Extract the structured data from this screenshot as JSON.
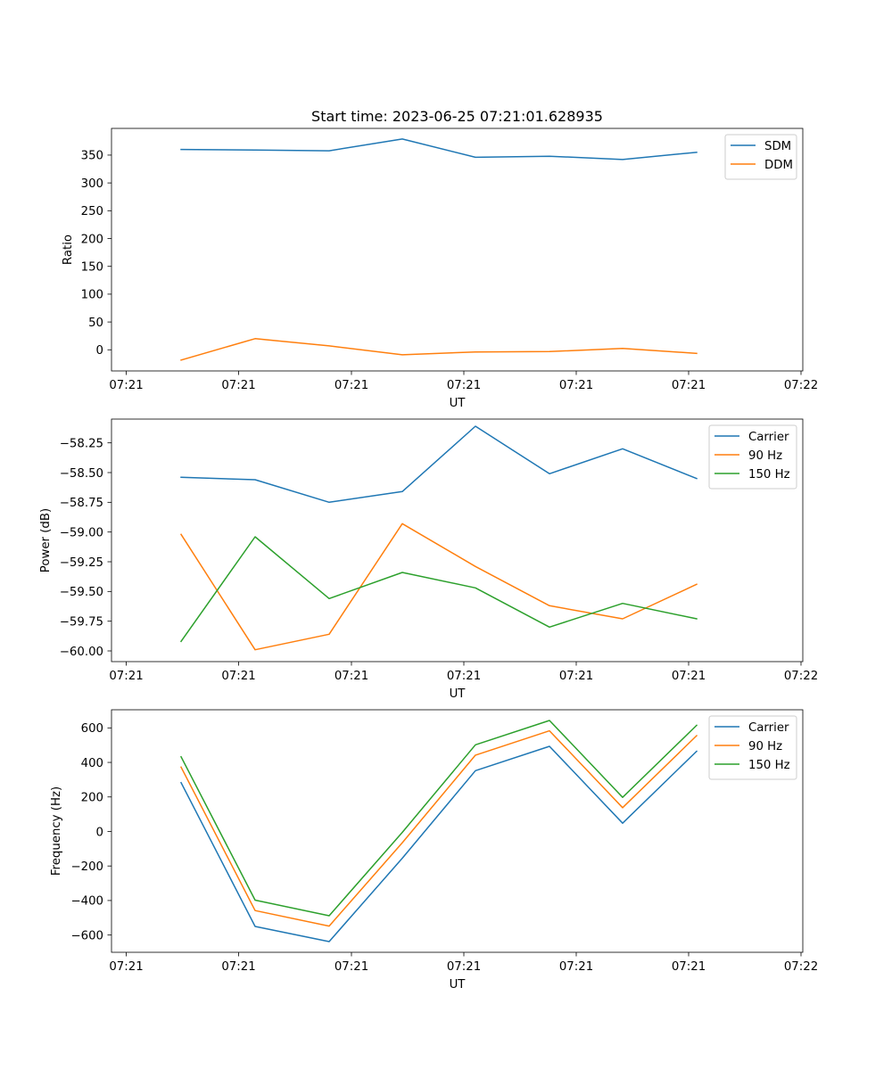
{
  "figure": {
    "title": "Start time: 2023-06-25 07:21:01.628935"
  },
  "chart_data": [
    {
      "type": "line",
      "title": "Start time: 2023-06-25 07:21:01.628935",
      "xlabel": "UT",
      "ylabel": "Ratio",
      "x_tick_labels": [
        "07:21",
        "07:21",
        "07:21",
        "07:21",
        "07:21",
        "07:21",
        "07:22"
      ],
      "y_ticks": [
        0,
        50,
        100,
        150,
        200,
        250,
        300,
        350
      ],
      "y_tick_labels": [
        "0",
        "50",
        "100",
        "150",
        "200",
        "250",
        "300",
        "350"
      ],
      "ylim": [
        -38,
        398
      ],
      "legend_position": "upper right",
      "series": [
        {
          "name": "SDM",
          "color": "#1f77b4",
          "values": [
            360.2,
            359.0,
            357.8,
            379.0,
            346.0,
            348.0,
            342.0,
            355.0
          ]
        },
        {
          "name": "DDM",
          "color": "#ff7f0e",
          "values": [
            -18.5,
            20.0,
            7.0,
            -9.0,
            -3.8,
            -3.2,
            2.6,
            -6.4
          ]
        }
      ]
    },
    {
      "type": "line",
      "title": "",
      "xlabel": "UT",
      "ylabel": "Power (dB)",
      "x_tick_labels": [
        "07:21",
        "07:21",
        "07:21",
        "07:21",
        "07:21",
        "07:21",
        "07:22"
      ],
      "y_ticks": [
        -60.0,
        -59.75,
        -59.5,
        -59.25,
        -59.0,
        -58.75,
        -58.5,
        -58.25
      ],
      "y_tick_labels": [
        "−60.00",
        "−59.75",
        "−59.50",
        "−59.25",
        "−59.00",
        "−58.75",
        "−58.50",
        "−58.25"
      ],
      "ylim": [
        -60.09,
        -58.05
      ],
      "legend_position": "upper right",
      "series": [
        {
          "name": "Carrier",
          "color": "#1f77b4",
          "values": [
            -58.54,
            -58.56,
            -58.75,
            -58.66,
            -58.11,
            -58.51,
            -58.3,
            -58.55
          ]
        },
        {
          "name": "90 Hz",
          "color": "#ff7f0e",
          "values": [
            -59.02,
            -59.99,
            -59.86,
            -58.93,
            -59.29,
            -59.62,
            -59.73,
            -59.44
          ]
        },
        {
          "name": "150 Hz",
          "color": "#2ca02c",
          "values": [
            -59.92,
            -59.04,
            -59.56,
            -59.34,
            -59.47,
            -59.8,
            -59.6,
            -59.73
          ]
        }
      ]
    },
    {
      "type": "line",
      "title": "",
      "xlabel": "UT",
      "ylabel": "Frequency (Hz)",
      "x_tick_labels": [
        "07:21",
        "07:21",
        "07:21",
        "07:21",
        "07:21",
        "07:21",
        "07:22"
      ],
      "y_ticks": [
        -600,
        -400,
        -200,
        0,
        200,
        400,
        600
      ],
      "y_tick_labels": [
        "−600",
        "−400",
        "−200",
        "0",
        "200",
        "400",
        "600"
      ],
      "ylim": [
        -700,
        705
      ],
      "legend_position": "upper right",
      "series": [
        {
          "name": "Carrier",
          "color": "#1f77b4",
          "values": [
            283,
            -550,
            -638,
            -155,
            352,
            493,
            48,
            465
          ]
        },
        {
          "name": "90 Hz",
          "color": "#ff7f0e",
          "values": [
            373,
            -458,
            -548,
            -65,
            442,
            583,
            138,
            555
          ]
        },
        {
          "name": "150 Hz",
          "color": "#2ca02c",
          "values": [
            433,
            -398,
            -488,
            -5,
            502,
            643,
            198,
            615
          ]
        }
      ]
    }
  ]
}
